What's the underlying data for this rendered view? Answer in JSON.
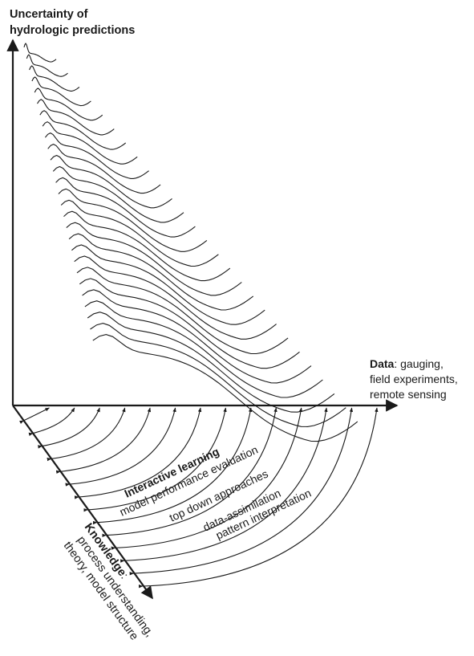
{
  "y_axis": {
    "title_line1": "Uncertainty of",
    "title_line2": "hydrologic predictions"
  },
  "data_axis": {
    "bold": "Data",
    "line1_rest": ": gauging,",
    "line2": "field experiments,",
    "line3": "remote sensing"
  },
  "knowledge_axis": {
    "bold": "Knowledge",
    "line1_rest": ":",
    "line2": "process understanding,",
    "line3": "theory, model structure"
  },
  "interactive": {
    "title": "Interactive learning",
    "items": [
      "model performance evaluation",
      "top down approaches",
      "data-assimilation",
      "pattern interpretation"
    ]
  },
  "colors": {
    "ink": "#1a1a1a"
  },
  "surface_curve_count": 27,
  "learning_arc_count": 14
}
